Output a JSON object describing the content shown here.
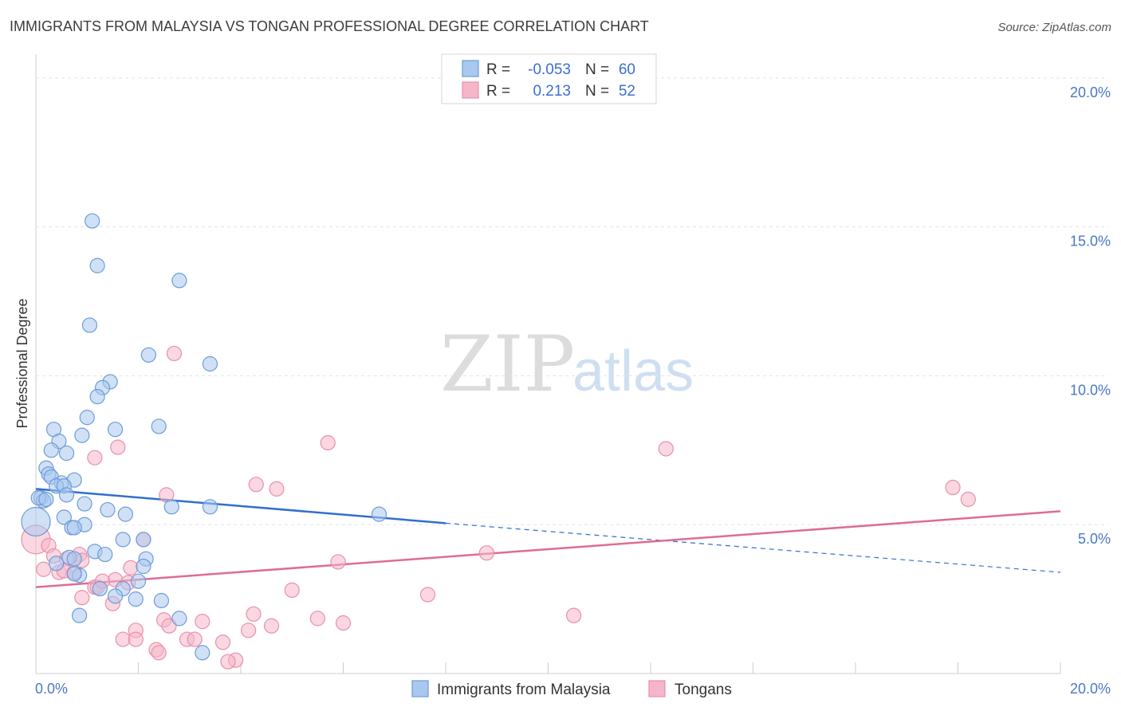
{
  "header": {
    "title": "IMMIGRANTS FROM MALAYSIA VS TONGAN PROFESSIONAL DEGREE CORRELATION CHART",
    "source": "Source: ZipAtlas.com"
  },
  "watermark": {
    "zip": "ZIP",
    "atlas": "atlas"
  },
  "legend": {
    "rows": [
      {
        "r_label": "R =",
        "r_value": "-0.053",
        "n_label": "N =",
        "n_value": "60",
        "color": "#a9c8ef"
      },
      {
        "r_label": "R =",
        "r_value": "0.213",
        "n_label": "N =",
        "n_value": "52",
        "color": "#f5b6c9"
      }
    ]
  },
  "colors": {
    "blue_fill": "#a9c8ef",
    "blue_stroke": "#6c9bd9",
    "blue_line": "#2f6fd0",
    "pink_fill": "#f5b6c9",
    "pink_stroke": "#e88fab",
    "pink_line": "#e06b93",
    "grid": "#e3e3e3"
  },
  "chart_data": {
    "type": "scatter",
    "title": "IMMIGRANTS FROM MALAYSIA VS TONGAN PROFESSIONAL DEGREE CORRELATION CHART",
    "xlabel": "",
    "ylabel": "Professional Degree",
    "xlim": [
      0,
      20
    ],
    "ylim": [
      0,
      20.8
    ],
    "x_tick_labels": [
      {
        "value": 0,
        "label": "0.0%"
      },
      {
        "value": 20,
        "label": "20.0%"
      }
    ],
    "y_tick_labels": [
      {
        "value": 5,
        "label": "5.0%"
      },
      {
        "value": 10,
        "label": "10.0%"
      },
      {
        "value": 15,
        "label": "15.0%"
      },
      {
        "value": 20,
        "label": "20.0%"
      }
    ],
    "x_minor_ticks": [
      0,
      2,
      4,
      6,
      8,
      10,
      12,
      14,
      16,
      18,
      20
    ],
    "grid": true,
    "legend_position": "top-center",
    "series": [
      {
        "name": "Immigrants from Malaysia",
        "color": "#a9c8ef",
        "r": -0.053,
        "n": 60,
        "trend": {
          "x0": 0,
          "y0": 6.2,
          "x1": 8.0,
          "y1": 5.05,
          "dashed_to_x": 20,
          "dashed_to_y": 3.4
        },
        "points": [
          [
            1.1,
            15.2
          ],
          [
            1.2,
            13.7
          ],
          [
            2.8,
            13.2
          ],
          [
            1.05,
            11.7
          ],
          [
            2.2,
            10.7
          ],
          [
            3.4,
            10.4
          ],
          [
            1.45,
            9.8
          ],
          [
            1.3,
            9.6
          ],
          [
            1.2,
            9.3
          ],
          [
            1.0,
            8.6
          ],
          [
            1.55,
            8.2
          ],
          [
            2.4,
            8.3
          ],
          [
            0.35,
            8.2
          ],
          [
            0.9,
            8.0
          ],
          [
            0.45,
            7.8
          ],
          [
            0.3,
            7.5
          ],
          [
            0.6,
            7.4
          ],
          [
            0.2,
            6.9
          ],
          [
            0.25,
            6.7
          ],
          [
            0.3,
            6.6
          ],
          [
            0.75,
            6.5
          ],
          [
            0.5,
            6.4
          ],
          [
            0.4,
            6.3
          ],
          [
            0.55,
            6.3
          ],
          [
            0.1,
            5.9
          ],
          [
            0.15,
            5.8
          ],
          [
            0.05,
            5.9
          ],
          [
            0.6,
            6.0
          ],
          [
            0.95,
            5.7
          ],
          [
            1.4,
            5.5
          ],
          [
            2.65,
            5.6
          ],
          [
            3.4,
            5.6
          ],
          [
            1.75,
            5.35
          ],
          [
            0.55,
            5.25
          ],
          [
            0.0,
            5.1
          ],
          [
            0.95,
            5.0
          ],
          [
            0.7,
            4.9
          ],
          [
            0.75,
            4.9
          ],
          [
            1.7,
            4.5
          ],
          [
            2.1,
            4.5
          ],
          [
            1.15,
            4.1
          ],
          [
            1.35,
            4.0
          ],
          [
            2.15,
            3.85
          ],
          [
            0.65,
            3.9
          ],
          [
            0.75,
            3.85
          ],
          [
            0.4,
            3.7
          ],
          [
            2.1,
            3.6
          ],
          [
            0.85,
            3.3
          ],
          [
            0.75,
            3.35
          ],
          [
            0.2,
            5.85
          ],
          [
            2.0,
            3.1
          ],
          [
            1.7,
            2.85
          ],
          [
            1.25,
            2.85
          ],
          [
            1.55,
            2.6
          ],
          [
            1.95,
            2.5
          ],
          [
            2.45,
            2.45
          ],
          [
            0.85,
            1.95
          ],
          [
            2.8,
            1.85
          ],
          [
            3.25,
            0.7
          ],
          [
            6.7,
            5.35
          ]
        ]
      },
      {
        "name": "Tongans",
        "color": "#f5b6c9",
        "r": 0.213,
        "n": 52,
        "trend": {
          "x0": 0,
          "y0": 2.9,
          "x1": 20,
          "y1": 5.45
        },
        "points": [
          [
            2.7,
            10.75
          ],
          [
            5.7,
            7.75
          ],
          [
            1.6,
            7.6
          ],
          [
            12.3,
            7.55
          ],
          [
            1.15,
            7.25
          ],
          [
            17.9,
            6.25
          ],
          [
            4.3,
            6.35
          ],
          [
            4.7,
            6.2
          ],
          [
            2.55,
            6.0
          ],
          [
            18.2,
            5.85
          ],
          [
            0.0,
            4.5
          ],
          [
            2.1,
            4.5
          ],
          [
            0.25,
            4.3
          ],
          [
            8.8,
            4.05
          ],
          [
            0.35,
            3.95
          ],
          [
            0.85,
            4.0
          ],
          [
            0.6,
            3.85
          ],
          [
            0.9,
            3.8
          ],
          [
            5.9,
            3.75
          ],
          [
            1.85,
            3.55
          ],
          [
            0.15,
            3.5
          ],
          [
            0.45,
            3.4
          ],
          [
            0.55,
            3.45
          ],
          [
            0.75,
            3.4
          ],
          [
            1.55,
            3.15
          ],
          [
            1.8,
            3.05
          ],
          [
            1.15,
            2.9
          ],
          [
            5.0,
            2.8
          ],
          [
            7.65,
            2.65
          ],
          [
            0.9,
            2.55
          ],
          [
            1.5,
            2.35
          ],
          [
            4.25,
            2.0
          ],
          [
            10.5,
            1.95
          ],
          [
            5.5,
            1.85
          ],
          [
            2.5,
            1.8
          ],
          [
            3.25,
            1.75
          ],
          [
            6.0,
            1.7
          ],
          [
            2.6,
            1.6
          ],
          [
            4.6,
            1.6
          ],
          [
            1.95,
            1.45
          ],
          [
            4.15,
            1.45
          ],
          [
            2.95,
            1.15
          ],
          [
            1.7,
            1.15
          ],
          [
            1.95,
            1.15
          ],
          [
            3.1,
            1.15
          ],
          [
            3.65,
            1.05
          ],
          [
            2.35,
            0.8
          ],
          [
            2.4,
            0.7
          ],
          [
            3.9,
            0.45
          ],
          [
            3.75,
            0.4
          ],
          [
            1.2,
            2.9
          ],
          [
            1.3,
            3.1
          ]
        ]
      }
    ]
  }
}
